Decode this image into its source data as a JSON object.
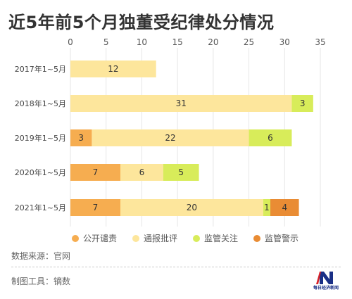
{
  "title": "近5年前5个月独董受纪律处分情况",
  "colors": {
    "公开谴责": "#F6AD50",
    "通报批评": "#FDE69C",
    "监管关注": "#D8EC5A",
    "监管警示": "#E98C34"
  },
  "chart_data": {
    "type": "bar",
    "orientation": "horizontal",
    "stacked": true,
    "categories": [
      "2017年1~5月",
      "2018年1~5月",
      "2019年1~5月",
      "2020年1~5月",
      "2021年1~5月"
    ],
    "series": [
      {
        "name": "公开谴责",
        "values": [
          0,
          0,
          3,
          7,
          7
        ]
      },
      {
        "name": "通报批评",
        "values": [
          12,
          31,
          22,
          6,
          20
        ]
      },
      {
        "name": "监管关注",
        "values": [
          0,
          3,
          6,
          5,
          1
        ]
      },
      {
        "name": "监管警示",
        "values": [
          0,
          0,
          0,
          0,
          4
        ]
      }
    ],
    "xticks": [
      "0",
      "5",
      "10",
      "15",
      "20",
      "25",
      "30",
      "35"
    ],
    "xlim": [
      0,
      35
    ],
    "grid": true,
    "legend": "bottom"
  },
  "footer": {
    "source": "数据来源：官网",
    "tool": "制图工具：镝数"
  },
  "logo": {
    "text": "每日经济新闻"
  }
}
